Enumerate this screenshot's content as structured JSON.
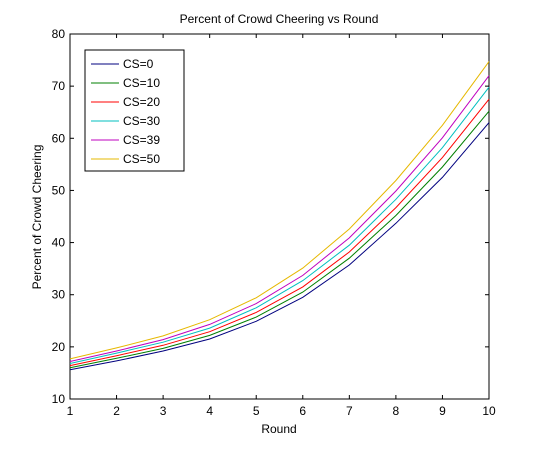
{
  "chart_data": {
    "type": "line",
    "title": "Percent of Crowd Cheering vs Round",
    "xlabel": "Round",
    "ylabel": "Percent of Crowd Cheering",
    "xlim": [
      1,
      10
    ],
    "ylim": [
      10,
      80
    ],
    "xticks": [
      "1",
      "2",
      "3",
      "4",
      "5",
      "6",
      "7",
      "8",
      "9",
      "10"
    ],
    "yticks": [
      "10",
      "20",
      "30",
      "40",
      "50",
      "60",
      "70",
      "80"
    ],
    "grid": false,
    "legend": "top-left",
    "x": [
      1,
      2,
      3,
      4,
      5,
      6,
      7,
      8,
      9,
      10
    ],
    "series": [
      {
        "name": "CS=0",
        "color": "#00007f",
        "values": [
          15.6,
          17.3,
          19.2,
          21.5,
          24.9,
          29.5,
          35.7,
          43.7,
          52.5,
          63.0
        ]
      },
      {
        "name": "CS=10",
        "color": "#007f00",
        "values": [
          16.0,
          17.8,
          19.7,
          22.2,
          25.7,
          30.5,
          37.0,
          45.2,
          54.5,
          65.2
        ]
      },
      {
        "name": "CS=20",
        "color": "#ff0000",
        "values": [
          16.4,
          18.3,
          20.3,
          22.9,
          26.6,
          31.5,
          38.2,
          46.7,
          56.3,
          67.5
        ]
      },
      {
        "name": "CS=30",
        "color": "#00bfbf",
        "values": [
          16.8,
          18.8,
          20.9,
          23.6,
          27.5,
          32.7,
          39.5,
          48.3,
          58.2,
          69.8
        ]
      },
      {
        "name": "CS=39",
        "color": "#bf00bf",
        "values": [
          17.2,
          19.2,
          21.4,
          24.3,
          28.3,
          33.7,
          40.9,
          49.9,
          60.1,
          72.0
        ]
      },
      {
        "name": "CS=50",
        "color": "#e6b800",
        "values": [
          17.7,
          19.8,
          22.1,
          25.2,
          29.4,
          35.1,
          42.6,
          51.9,
          62.5,
          74.7
        ]
      }
    ]
  }
}
